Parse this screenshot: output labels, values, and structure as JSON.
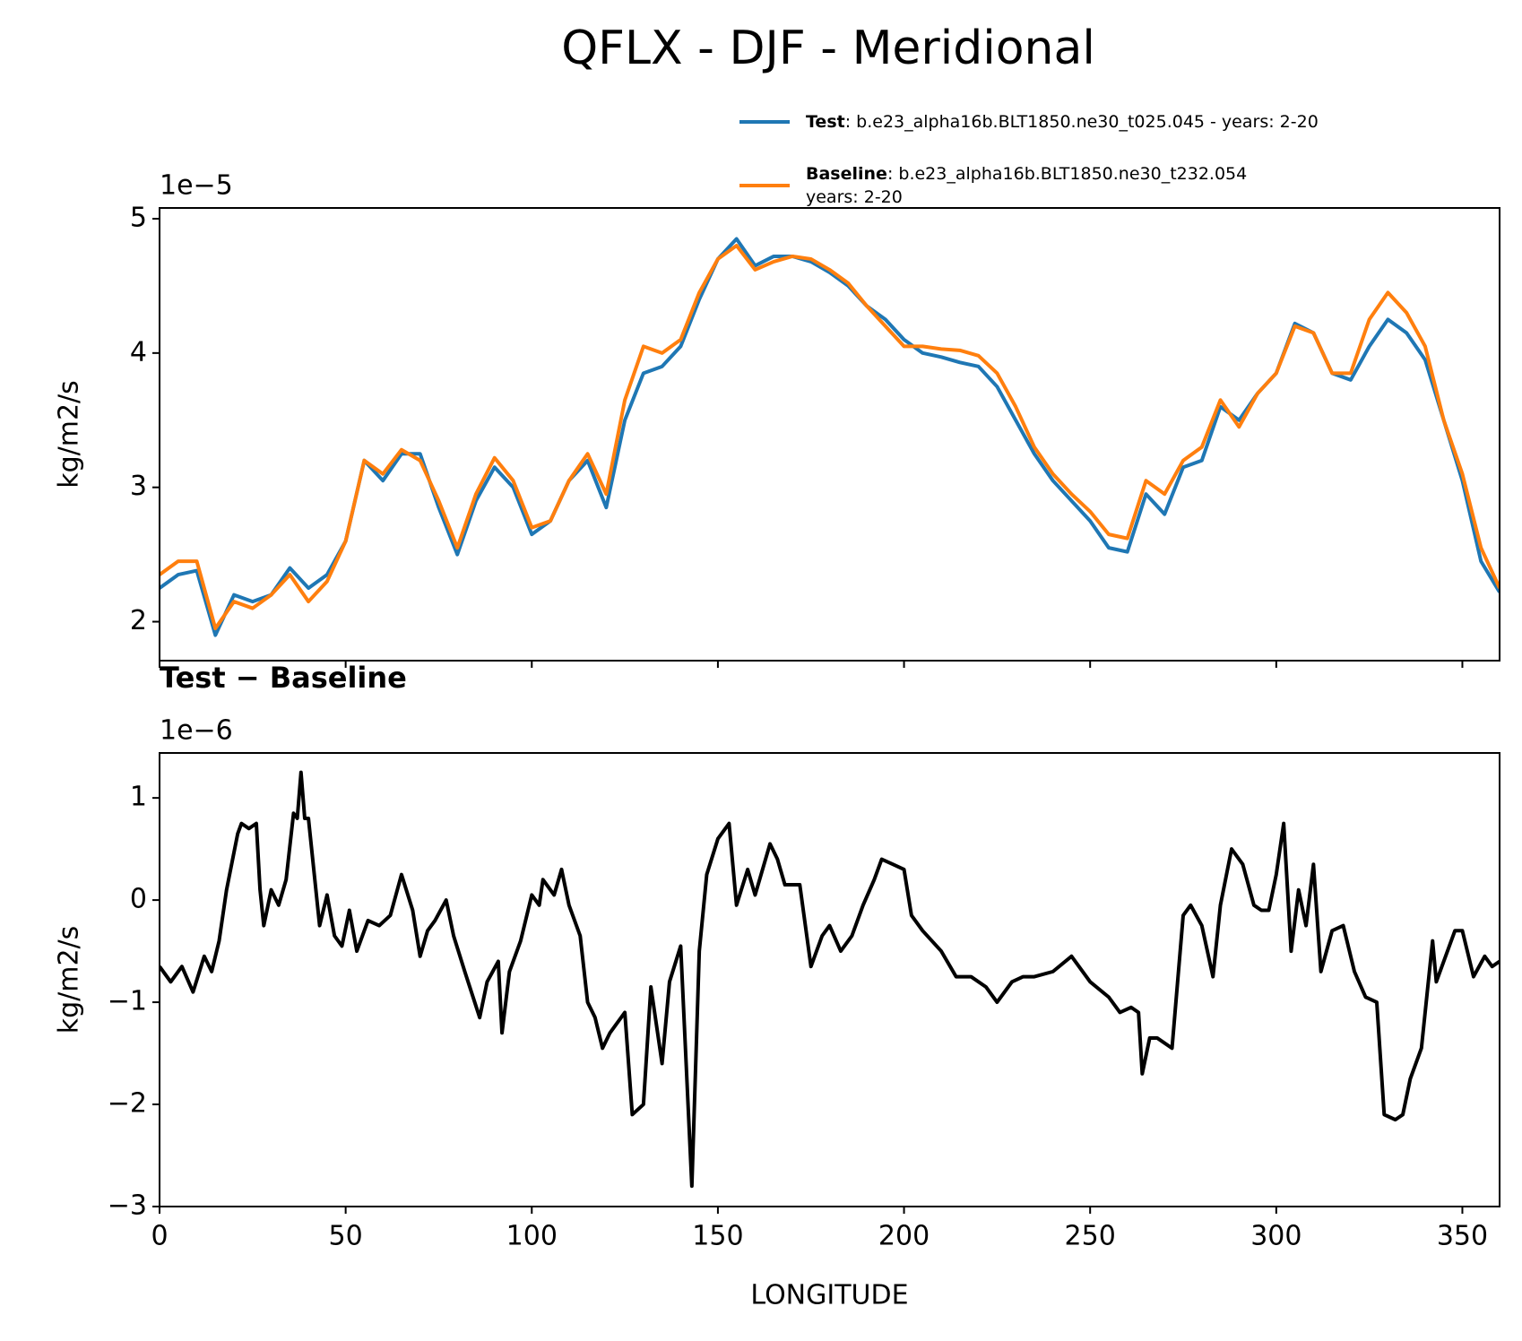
{
  "title": "QFLX - DJF - Meridional",
  "chart_data": [
    {
      "type": "line",
      "offset_label": "1e−5",
      "ylabel": "kg/m2/s",
      "x": [
        0,
        5,
        10,
        15,
        20,
        25,
        30,
        35,
        40,
        45,
        50,
        55,
        60,
        65,
        70,
        75,
        80,
        85,
        90,
        95,
        100,
        105,
        110,
        115,
        120,
        125,
        130,
        135,
        140,
        145,
        150,
        155,
        160,
        165,
        170,
        175,
        180,
        185,
        190,
        195,
        200,
        205,
        210,
        215,
        220,
        225,
        230,
        235,
        240,
        245,
        250,
        255,
        260,
        265,
        270,
        275,
        280,
        285,
        290,
        295,
        300,
        305,
        310,
        315,
        320,
        325,
        330,
        335,
        340,
        345,
        350,
        355,
        360
      ],
      "series": [
        {
          "name": "Test",
          "label_lines": [
            ": b.e23_alpha16b.BLT1850.ne30_t025.045 - years: 2-20"
          ],
          "color": "#1f77b4",
          "values": [
            2.25,
            2.35,
            2.38,
            1.9,
            2.2,
            2.15,
            2.2,
            2.4,
            2.25,
            2.35,
            2.6,
            3.2,
            3.05,
            3.25,
            3.25,
            2.85,
            2.5,
            2.9,
            3.15,
            3.0,
            2.65,
            2.75,
            3.05,
            3.2,
            2.85,
            3.5,
            3.85,
            3.9,
            4.05,
            4.4,
            4.7,
            4.85,
            4.65,
            4.72,
            4.72,
            4.68,
            4.6,
            4.5,
            4.35,
            4.25,
            4.1,
            4.0,
            3.97,
            3.93,
            3.9,
            3.75,
            3.5,
            3.25,
            3.05,
            2.9,
            2.75,
            2.55,
            2.52,
            2.95,
            2.8,
            3.15,
            3.2,
            3.6,
            3.5,
            3.7,
            3.85,
            4.22,
            4.15,
            3.85,
            3.8,
            4.05,
            4.25,
            4.15,
            3.95,
            3.5,
            3.05,
            2.45,
            2.22
          ]
        },
        {
          "name": "Baseline",
          "label_lines": [
            ": b.e23_alpha16b.BLT1850.ne30_t232.054",
            "years: 2-20"
          ],
          "color": "#ff7f0e",
          "values": [
            2.35,
            2.45,
            2.45,
            1.95,
            2.15,
            2.1,
            2.2,
            2.35,
            2.15,
            2.3,
            2.6,
            3.2,
            3.1,
            3.28,
            3.2,
            2.9,
            2.55,
            2.95,
            3.22,
            3.05,
            2.7,
            2.75,
            3.05,
            3.25,
            2.95,
            3.65,
            4.05,
            4.0,
            4.1,
            4.45,
            4.7,
            4.8,
            4.62,
            4.68,
            4.72,
            4.7,
            4.62,
            4.52,
            4.35,
            4.2,
            4.05,
            4.05,
            4.03,
            4.02,
            3.98,
            3.85,
            3.6,
            3.3,
            3.1,
            2.95,
            2.82,
            2.65,
            2.62,
            3.05,
            2.95,
            3.2,
            3.3,
            3.65,
            3.45,
            3.7,
            3.85,
            4.2,
            4.15,
            3.85,
            3.85,
            4.25,
            4.45,
            4.3,
            4.05,
            3.5,
            3.1,
            2.55,
            2.25
          ]
        }
      ],
      "xlim": [
        0,
        360
      ],
      "xticks": [
        0,
        50,
        100,
        150,
        200,
        250,
        300,
        350
      ],
      "xticklabels_visible": false,
      "ylim": [
        1.71,
        5.08
      ],
      "yticks": [
        2,
        3,
        4,
        5
      ],
      "legend": "upper right"
    },
    {
      "type": "line",
      "subtitle": "Test − Baseline",
      "offset_label": "1e−6",
      "xlabel": "LONGITUDE",
      "ylabel": "kg/m2/s",
      "x": [
        0,
        3,
        6,
        9,
        12,
        14,
        16,
        18,
        21,
        22,
        24,
        26,
        27,
        28,
        30,
        32,
        34,
        36,
        37,
        38,
        39,
        40,
        43,
        45,
        47,
        49,
        51,
        53,
        56,
        59,
        62,
        65,
        68,
        70,
        72,
        74,
        77,
        79,
        82,
        86,
        88,
        91,
        92,
        94,
        97,
        100,
        102,
        103,
        106,
        108,
        110,
        113,
        115,
        117,
        119,
        121,
        124,
        125,
        127,
        130,
        132,
        135,
        137,
        140,
        143,
        145,
        147,
        150,
        153,
        155,
        158,
        160,
        164,
        166,
        168,
        172,
        175,
        178,
        180,
        183,
        186,
        189,
        192,
        194,
        197,
        200,
        202,
        205,
        210,
        214,
        218,
        222,
        225,
        229,
        232,
        235,
        240,
        245,
        250,
        255,
        258,
        261,
        263,
        264,
        266,
        268,
        272,
        275,
        277,
        280,
        283,
        285,
        288,
        291,
        294,
        296,
        298,
        300,
        302,
        304,
        306,
        308,
        310,
        312,
        315,
        318,
        321,
        324,
        327,
        329,
        332,
        334,
        336,
        339,
        342,
        343,
        345,
        348,
        350,
        353,
        356,
        358,
        360
      ],
      "series": [
        {
          "color": "#000000",
          "values": [
            -0.65,
            -0.8,
            -0.65,
            -0.9,
            -0.55,
            -0.7,
            -0.4,
            0.1,
            0.65,
            0.75,
            0.7,
            0.75,
            0.1,
            -0.25,
            0.1,
            -0.05,
            0.2,
            0.85,
            0.8,
            1.25,
            0.8,
            0.8,
            -0.25,
            0.05,
            -0.35,
            -0.45,
            -0.1,
            -0.5,
            -0.2,
            -0.25,
            -0.15,
            0.25,
            -0.1,
            -0.55,
            -0.3,
            -0.2,
            0.0,
            -0.35,
            -0.7,
            -1.15,
            -0.8,
            -0.6,
            -1.3,
            -0.7,
            -0.4,
            0.05,
            -0.05,
            0.2,
            0.05,
            0.3,
            -0.05,
            -0.35,
            -1.0,
            -1.15,
            -1.45,
            -1.3,
            -1.15,
            -1.1,
            -2.1,
            -2.0,
            -0.85,
            -1.6,
            -0.8,
            -0.45,
            -2.8,
            -0.5,
            0.25,
            0.6,
            0.75,
            -0.05,
            0.3,
            0.05,
            0.55,
            0.4,
            0.15,
            0.15,
            -0.65,
            -0.35,
            -0.25,
            -0.5,
            -0.35,
            -0.05,
            0.2,
            0.4,
            0.35,
            0.3,
            -0.15,
            -0.3,
            -0.5,
            -0.75,
            -0.75,
            -0.85,
            -1.0,
            -0.8,
            -0.75,
            -0.75,
            -0.7,
            -0.55,
            -0.8,
            -0.95,
            -1.1,
            -1.05,
            -1.1,
            -1.7,
            -1.35,
            -1.35,
            -1.45,
            -0.15,
            -0.05,
            -0.25,
            -0.75,
            -0.05,
            0.5,
            0.35,
            -0.05,
            -0.1,
            -0.1,
            0.25,
            0.75,
            -0.5,
            0.1,
            -0.25,
            0.35,
            -0.7,
            -0.3,
            -0.25,
            -0.7,
            -0.95,
            -1.0,
            -2.1,
            -2.15,
            -2.1,
            -1.75,
            -1.45,
            -0.4,
            -0.8,
            -0.6,
            -0.3,
            -0.3,
            -0.75,
            -0.55,
            -0.65,
            -0.6
          ]
        }
      ],
      "xlim": [
        0,
        360
      ],
      "xticks": [
        0,
        50,
        100,
        150,
        200,
        250,
        300,
        350
      ],
      "xticklabels_visible": true,
      "ylim": [
        -3.0,
        1.44
      ],
      "yticks": [
        -3,
        -2,
        -1,
        0,
        1
      ]
    }
  ]
}
